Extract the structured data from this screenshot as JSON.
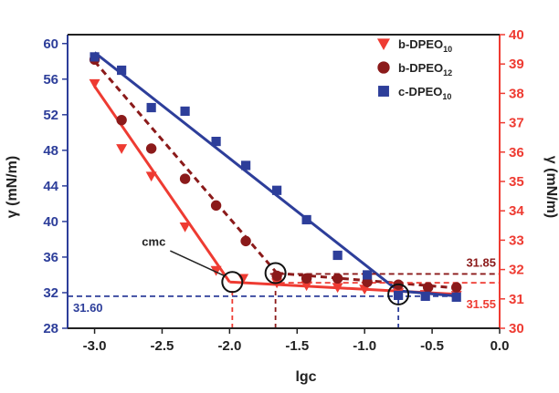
{
  "chart_data": {
    "type": "scatter",
    "title": "",
    "xlabel": "lgc",
    "ylabel_left": "γ (mN/m)",
    "ylabel_right": "γ (mN/m)",
    "xlim": [
      -3.2,
      0.0
    ],
    "ylim_left": [
      28,
      61
    ],
    "ylim_right": [
      30,
      40
    ],
    "x_ticks": [
      "-3.0",
      "-2.5",
      "-2.0",
      "-1.5",
      "-1.0",
      "-0.5",
      "0.0"
    ],
    "y_left_ticks": [
      "28",
      "32",
      "36",
      "40",
      "44",
      "48",
      "52",
      "56",
      "60"
    ],
    "y_right_ticks": [
      "30",
      "31",
      "32",
      "33",
      "34",
      "35",
      "36",
      "37",
      "38",
      "39",
      "40"
    ],
    "left_axis_color": "#2d3e9a",
    "right_axis_color": "#ee3b32",
    "grid": false,
    "legend_position": "top-right",
    "series": [
      {
        "name": "b-DPEO",
        "subscript": "10",
        "color": "#ee3b32",
        "marker": "triangle-down",
        "x": [
          -3.0,
          -2.8,
          -2.58,
          -2.33,
          -2.1,
          -1.9,
          -1.65,
          -1.43,
          -1.2,
          -1.0,
          -0.75,
          -0.55,
          -0.32
        ],
        "y": [
          55.5,
          48.2,
          45.1,
          39.4,
          34.5,
          33.6,
          33.1,
          32.8,
          32.6,
          32.4,
          32.0,
          31.8,
          31.7
        ]
      },
      {
        "name": "b-DPEO",
        "subscript": "12",
        "color": "#8b1a1a",
        "marker": "circle",
        "x": [
          -3.0,
          -2.8,
          -2.58,
          -2.33,
          -2.1,
          -1.88,
          -1.65,
          -1.43,
          -1.2,
          -0.98,
          -0.75,
          -0.53,
          -0.32
        ],
        "y": [
          58.2,
          51.4,
          48.2,
          44.8,
          41.8,
          37.8,
          33.9,
          33.6,
          33.6,
          33.2,
          32.9,
          32.6,
          32.6
        ]
      },
      {
        "name": "c-DPEO",
        "subscript": "10",
        "color": "#2d3e9a",
        "marker": "square",
        "x": [
          -3.0,
          -2.8,
          -2.58,
          -2.33,
          -2.1,
          -1.88,
          -1.65,
          -1.43,
          -1.2,
          -0.98,
          -0.75,
          -0.55,
          -0.32
        ],
        "y": [
          58.5,
          57.0,
          52.8,
          52.4,
          49.0,
          46.3,
          43.5,
          40.2,
          36.2,
          34.0,
          31.7,
          31.6,
          31.5
        ]
      }
    ],
    "fit_lines": [
      {
        "series": 0,
        "style": "solid",
        "segments": [
          [
            [
              -3.0,
              55.2
            ],
            [
              -2.0,
              33.2
            ]
          ],
          [
            [
              -2.0,
              33.2
            ],
            [
              -0.3,
              31.8
            ]
          ]
        ]
      },
      {
        "series": 1,
        "style": "dashed",
        "segments": [
          [
            [
              -3.0,
              58.0
            ],
            [
              -1.65,
              34.2
            ]
          ],
          [
            [
              -1.65,
              34.2
            ],
            [
              -0.3,
              32.5
            ]
          ]
        ]
      },
      {
        "series": 2,
        "style": "solid",
        "segments": [
          [
            [
              -3.0,
              59.0
            ],
            [
              -0.75,
              32.2
            ]
          ],
          [
            [
              -0.75,
              32.2
            ],
            [
              -0.3,
              31.6
            ]
          ]
        ]
      }
    ],
    "cmc_points": [
      {
        "x": -1.98,
        "y": 33.2
      },
      {
        "x": -1.66,
        "y": 34.2
      },
      {
        "x": -0.75,
        "y": 31.8
      }
    ],
    "cmc_label": "cmc",
    "reference_lines": [
      {
        "label": "31.60",
        "axis": "left",
        "y": 31.6,
        "color": "#2d3e9a",
        "label_side": "left"
      },
      {
        "label": "31.85",
        "axis": "right",
        "y": 31.85,
        "color": "#8b1a1a",
        "label_side": "right-above"
      },
      {
        "label": "31.55",
        "axis": "right",
        "y": 31.55,
        "color": "#ee3b32",
        "label_side": "right-below"
      }
    ],
    "drop_lines": [
      {
        "x": -1.98,
        "color": "#ee3b32"
      },
      {
        "x": -1.66,
        "color": "#8b1a1a"
      },
      {
        "x": -0.75,
        "color": "#2d3e9a"
      }
    ]
  }
}
